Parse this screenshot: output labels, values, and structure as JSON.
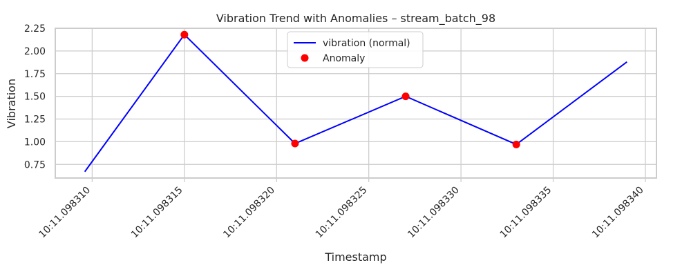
{
  "chart_data": {
    "type": "line",
    "title": "Vibration Trend with Anomalies – stream_batch_98",
    "xlabel": "Timestamp",
    "ylabel": "Vibration",
    "x_tick_labels": [
      "10:11.098310",
      "10:11.098315",
      "10:11.098320",
      "10:11.098325",
      "10:11.098330",
      "10:11.098335",
      "10:11.098340"
    ],
    "x_tick_values": [
      10,
      15,
      20,
      25,
      30,
      35,
      40
    ],
    "xlim": [
      8,
      40.6
    ],
    "y_ticks": [
      "0.75",
      "1.00",
      "1.25",
      "1.50",
      "1.75",
      "2.00",
      "2.25"
    ],
    "y_tick_values": [
      0.75,
      1.0,
      1.25,
      1.5,
      1.75,
      2.0,
      2.25
    ],
    "ylim": [
      0.6,
      2.25
    ],
    "series": [
      {
        "name": "vibration (normal)",
        "kind": "line",
        "color": "#0000ff",
        "x": [
          9.6,
          15.0,
          21.0,
          27.0,
          33.0,
          39.0
        ],
        "y": [
          0.67,
          2.18,
          0.98,
          1.5,
          0.97,
          1.88
        ]
      },
      {
        "name": "Anomaly",
        "kind": "scatter",
        "color": "#ff0000",
        "x": [
          15.0,
          21.0,
          27.0,
          33.0
        ],
        "y": [
          2.18,
          0.98,
          1.5,
          0.97
        ]
      }
    ],
    "grid": true,
    "legend_position": "upper center"
  }
}
